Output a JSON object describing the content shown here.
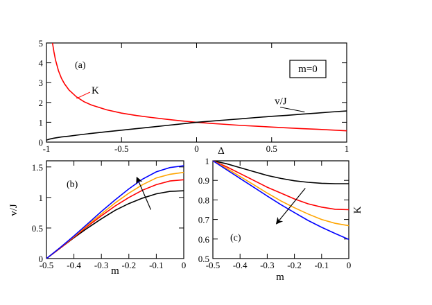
{
  "chart_data": [
    {
      "id": "a",
      "type": "line",
      "panel_label": "(a)",
      "box_label": "m=0",
      "xlabel": "Δ",
      "ylabel": "",
      "xlim": [
        -1,
        1
      ],
      "ylim": [
        0,
        5
      ],
      "xticks": [
        -1,
        -0.5,
        0,
        0.5,
        1
      ],
      "xtick_labels": [
        "-1",
        "-0.5",
        "0",
        "0.5",
        "1"
      ],
      "yticks": [
        0,
        1,
        2,
        3,
        4,
        5
      ],
      "ytick_labels": [
        "0",
        "1",
        "2",
        "3",
        "4",
        "5"
      ],
      "series": [
        {
          "name": "K",
          "color": "#ff0000",
          "x": [
            -0.96,
            -0.95,
            -0.94,
            -0.92,
            -0.9,
            -0.88,
            -0.85,
            -0.8,
            -0.75,
            -0.7,
            -0.6,
            -0.5,
            -0.4,
            -0.3,
            -0.2,
            -0.1,
            0.0,
            0.1,
            0.2,
            0.3,
            0.4,
            0.5,
            0.6,
            0.7,
            0.8,
            0.9,
            1.0
          ],
          "y": [
            5.0,
            4.55,
            4.15,
            3.6,
            3.22,
            2.94,
            2.63,
            2.28,
            2.04,
            1.87,
            1.63,
            1.46,
            1.34,
            1.24,
            1.15,
            1.07,
            1.0,
            0.94,
            0.89,
            0.84,
            0.8,
            0.76,
            0.72,
            0.68,
            0.65,
            0.61,
            0.57
          ]
        },
        {
          "name": "v/J",
          "color": "#000000",
          "x": [
            -1.0,
            -0.98,
            -0.95,
            -0.9,
            -0.85,
            -0.8,
            -0.7,
            -0.6,
            -0.5,
            -0.4,
            -0.3,
            -0.2,
            -0.1,
            0.0,
            0.1,
            0.2,
            0.3,
            0.4,
            0.5,
            0.6,
            0.7,
            0.8,
            0.9,
            1.0
          ],
          "y": [
            0.1,
            0.15,
            0.2,
            0.26,
            0.3,
            0.35,
            0.44,
            0.52,
            0.6,
            0.68,
            0.76,
            0.84,
            0.92,
            1.0,
            1.06,
            1.12,
            1.18,
            1.24,
            1.3,
            1.35,
            1.41,
            1.46,
            1.52,
            1.57
          ]
        }
      ],
      "annotations": [
        {
          "text": "K",
          "color": "#ff0000",
          "x": -0.7,
          "y": 2.45,
          "line_to": [
            -0.8,
            2.2
          ]
        },
        {
          "text": "v/J",
          "color": "#000000",
          "x": 0.52,
          "y": 1.9,
          "line_to": [
            0.72,
            1.52
          ]
        }
      ]
    },
    {
      "id": "b",
      "type": "line",
      "panel_label": "(b)",
      "xlabel": "m",
      "ylabel": "v/J",
      "xlim": [
        -0.5,
        0
      ],
      "ylim": [
        0,
        1.6
      ],
      "xticks": [
        -0.5,
        -0.4,
        -0.3,
        -0.2,
        -0.1,
        0
      ],
      "xtick_labels": [
        "-0.5",
        "-0.4",
        "-0.3",
        "-0.2",
        "-0.1",
        "0"
      ],
      "yticks": [
        0,
        0.5,
        1,
        1.5
      ],
      "ytick_labels": [
        "0",
        "0.5",
        "1",
        "1.5"
      ],
      "series": [
        {
          "name": "black",
          "color": "#000000",
          "x": [
            -0.5,
            -0.45,
            -0.4,
            -0.35,
            -0.3,
            -0.25,
            -0.2,
            -0.15,
            -0.1,
            -0.05,
            0.0
          ],
          "y": [
            0.0,
            0.17,
            0.34,
            0.5,
            0.65,
            0.79,
            0.9,
            0.99,
            1.06,
            1.1,
            1.11
          ]
        },
        {
          "name": "red",
          "color": "#ff0000",
          "x": [
            -0.5,
            -0.45,
            -0.4,
            -0.35,
            -0.3,
            -0.25,
            -0.2,
            -0.15,
            -0.1,
            -0.05,
            0.0
          ],
          "y": [
            0.0,
            0.17,
            0.35,
            0.53,
            0.7,
            0.86,
            1.0,
            1.12,
            1.21,
            1.27,
            1.29
          ]
        },
        {
          "name": "orange",
          "color": "#ffa500",
          "x": [
            -0.5,
            -0.45,
            -0.4,
            -0.35,
            -0.3,
            -0.25,
            -0.2,
            -0.15,
            -0.1,
            -0.05,
            0.0
          ],
          "y": [
            0.0,
            0.18,
            0.36,
            0.55,
            0.73,
            0.91,
            1.07,
            1.21,
            1.32,
            1.38,
            1.41
          ]
        },
        {
          "name": "blue",
          "color": "#0000ff",
          "x": [
            -0.5,
            -0.45,
            -0.4,
            -0.35,
            -0.3,
            -0.25,
            -0.2,
            -0.15,
            -0.1,
            -0.05,
            0.0
          ],
          "y": [
            0.0,
            0.18,
            0.37,
            0.57,
            0.77,
            0.96,
            1.14,
            1.3,
            1.42,
            1.49,
            1.52
          ]
        }
      ],
      "arrow": {
        "from": [
          -0.12,
          0.8
        ],
        "to": [
          -0.17,
          1.32
        ]
      }
    },
    {
      "id": "c",
      "type": "line",
      "panel_label": "(c)",
      "xlabel": "m",
      "ylabel": "K",
      "xlim": [
        -0.5,
        0
      ],
      "ylim": [
        0.5,
        1.0
      ],
      "xticks": [
        -0.5,
        -0.4,
        -0.3,
        -0.2,
        -0.1,
        0
      ],
      "xtick_labels": [
        "-0.5",
        "-0.4",
        "-0.3",
        "-0.2",
        "-0.1",
        "0"
      ],
      "yticks": [
        0.5,
        0.6,
        0.7,
        0.8,
        0.9,
        1.0
      ],
      "ytick_labels": [
        "0.5",
        "0.6",
        "0.7",
        "0.8",
        "0.9",
        "1"
      ],
      "series": [
        {
          "name": "black",
          "color": "#000000",
          "x": [
            -0.5,
            -0.45,
            -0.4,
            -0.35,
            -0.3,
            -0.25,
            -0.2,
            -0.15,
            -0.1,
            -0.05,
            0.0
          ],
          "y": [
            1.0,
            0.985,
            0.965,
            0.945,
            0.925,
            0.91,
            0.898,
            0.89,
            0.885,
            0.883,
            0.883
          ]
        },
        {
          "name": "red",
          "color": "#ff0000",
          "x": [
            -0.5,
            -0.45,
            -0.4,
            -0.35,
            -0.3,
            -0.25,
            -0.2,
            -0.15,
            -0.1,
            -0.05,
            0.0
          ],
          "y": [
            1.0,
            0.97,
            0.935,
            0.9,
            0.865,
            0.835,
            0.805,
            0.78,
            0.763,
            0.752,
            0.75
          ]
        },
        {
          "name": "orange",
          "color": "#ffa500",
          "x": [
            -0.5,
            -0.45,
            -0.4,
            -0.35,
            -0.3,
            -0.25,
            -0.2,
            -0.15,
            -0.1,
            -0.05,
            0.0
          ],
          "y": [
            1.0,
            0.962,
            0.92,
            0.878,
            0.835,
            0.795,
            0.76,
            0.728,
            0.7,
            0.68,
            0.668
          ]
        },
        {
          "name": "blue",
          "color": "#0000ff",
          "x": [
            -0.5,
            -0.45,
            -0.4,
            -0.35,
            -0.3,
            -0.25,
            -0.2,
            -0.15,
            -0.1,
            -0.05,
            0.0
          ],
          "y": [
            1.0,
            0.955,
            0.91,
            0.865,
            0.82,
            0.776,
            0.735,
            0.695,
            0.66,
            0.628,
            0.598
          ]
        }
      ],
      "arrow": {
        "from": [
          -0.16,
          0.86
        ],
        "to": [
          -0.265,
          0.68
        ]
      }
    }
  ]
}
